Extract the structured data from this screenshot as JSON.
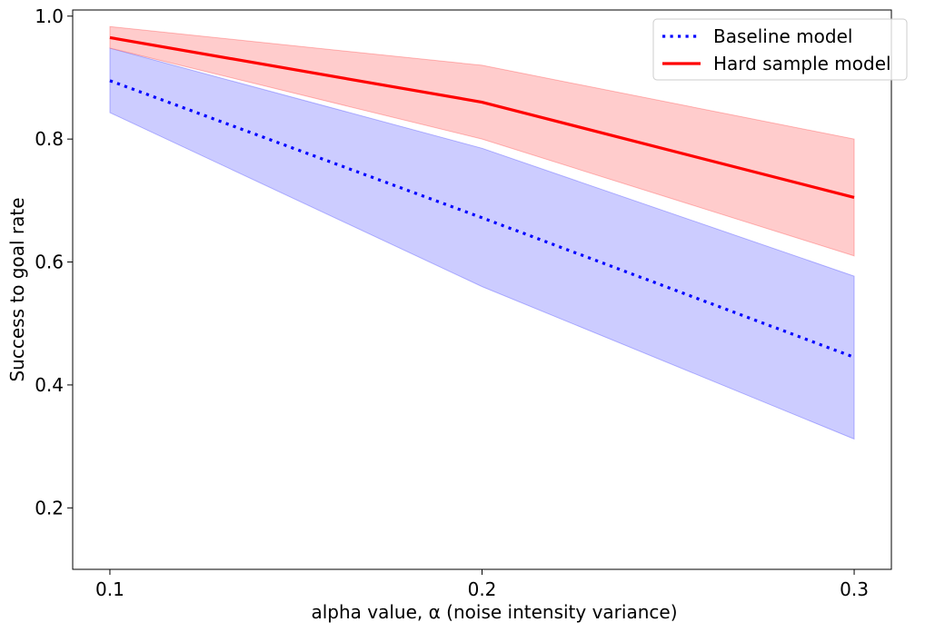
{
  "chart_data": {
    "type": "line",
    "title": "",
    "xlabel": "alpha value, α (noise intensity variance)",
    "ylabel": "Success to goal rate",
    "x": [
      0.1,
      0.2,
      0.3
    ],
    "xticks": [
      "0.1",
      "0.2",
      "0.3"
    ],
    "yticks": [
      "0.2",
      "0.4",
      "0.6",
      "0.8",
      "1.0"
    ],
    "xlim": [
      0.09,
      0.31
    ],
    "ylim": [
      0.1,
      1.01
    ],
    "grid": false,
    "legend_position": "top-right",
    "series": [
      {
        "name": "Baseline model",
        "style": "dotted",
        "color": "#0000ff",
        "band_color": "#ccccff",
        "values": [
          0.895,
          0.672,
          0.445
        ],
        "lower": [
          0.843,
          0.56,
          0.312
        ],
        "upper": [
          0.948,
          0.785,
          0.577
        ]
      },
      {
        "name": "Hard sample model",
        "style": "solid",
        "color": "#ff0000",
        "band_color": "#ffcccc",
        "values": [
          0.965,
          0.86,
          0.705
        ],
        "lower": [
          0.948,
          0.8,
          0.61
        ],
        "upper": [
          0.983,
          0.92,
          0.8
        ]
      }
    ]
  }
}
